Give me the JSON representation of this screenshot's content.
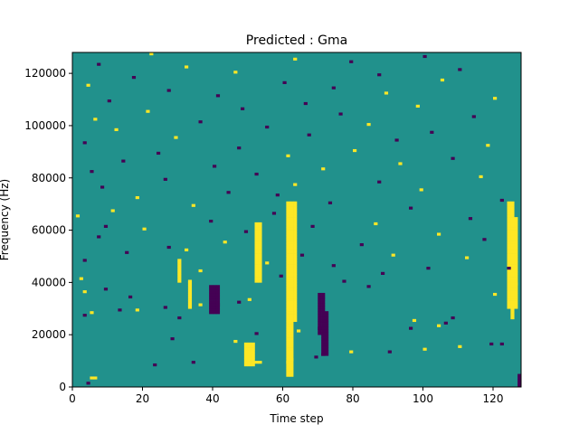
{
  "chart_data": {
    "type": "heatmap",
    "title": "Predicted : Gma",
    "xlabel": "Time step",
    "ylabel": "Frequency (Hz)",
    "xlim": [
      0,
      128
    ],
    "ylim": [
      0,
      128000
    ],
    "xticks": [
      0,
      20,
      40,
      60,
      80,
      100,
      120
    ],
    "yticks": [
      0,
      20000,
      40000,
      60000,
      80000,
      100000,
      120000
    ],
    "grid": false,
    "colormap": "viridis",
    "value_levels": {
      "low": -1,
      "mid": 0,
      "high": 1
    },
    "colors": {
      "low": "#440154",
      "mid": "#21918c",
      "high": "#fde725"
    },
    "rows": 128,
    "cols": 128,
    "cells": [
      [
        4,
        1,
        "lo"
      ],
      [
        5,
        3,
        "hi"
      ],
      [
        6,
        3,
        "hi"
      ],
      [
        23,
        8,
        "lo"
      ],
      [
        34,
        9,
        "lo"
      ],
      [
        52,
        9,
        "hi"
      ],
      [
        53,
        9,
        "hi"
      ],
      [
        61,
        9,
        "hi"
      ],
      [
        62,
        10,
        "hi"
      ],
      [
        69,
        11,
        "lo"
      ],
      [
        71,
        12,
        "lo"
      ],
      [
        79,
        13,
        "hi"
      ],
      [
        90,
        13,
        "lo"
      ],
      [
        100,
        14,
        "hi"
      ],
      [
        110,
        15,
        "hi"
      ],
      [
        119,
        16,
        "lo"
      ],
      [
        122,
        16,
        "lo"
      ],
      [
        46,
        17,
        "hi"
      ],
      [
        28,
        18,
        "lo"
      ],
      [
        52,
        20,
        "lo"
      ],
      [
        64,
        21,
        "hi"
      ],
      [
        70,
        22,
        "lo"
      ],
      [
        96,
        22,
        "lo"
      ],
      [
        104,
        23,
        "hi"
      ],
      [
        106,
        24,
        "lo"
      ],
      [
        97,
        25,
        "hi"
      ],
      [
        30,
        26,
        "lo"
      ],
      [
        108,
        26,
        "lo"
      ],
      [
        3,
        27,
        "lo"
      ],
      [
        5,
        28,
        "hi"
      ],
      [
        13,
        29,
        "lo"
      ],
      [
        18,
        29,
        "hi"
      ],
      [
        26,
        30,
        "lo"
      ],
      [
        36,
        31,
        "hi"
      ],
      [
        41,
        31,
        "lo"
      ],
      [
        47,
        32,
        "lo"
      ],
      [
        50,
        33,
        "hi"
      ],
      [
        16,
        34,
        "lo"
      ],
      [
        120,
        35,
        "hi"
      ],
      [
        3,
        36,
        "hi"
      ],
      [
        9,
        37,
        "lo"
      ],
      [
        84,
        38,
        "lo"
      ],
      [
        126,
        39,
        "hi"
      ],
      [
        77,
        40,
        "lo"
      ],
      [
        2,
        41,
        "hi"
      ],
      [
        59,
        42,
        "lo"
      ],
      [
        88,
        43,
        "lo"
      ],
      [
        36,
        44,
        "hi"
      ],
      [
        101,
        45,
        "lo"
      ],
      [
        124,
        45,
        "lo"
      ],
      [
        74,
        46,
        "lo"
      ],
      [
        55,
        47,
        "hi"
      ],
      [
        3,
        48,
        "lo"
      ],
      [
        112,
        49,
        "hi"
      ],
      [
        65,
        50,
        "lo"
      ],
      [
        91,
        50,
        "hi"
      ],
      [
        15,
        51,
        "lo"
      ],
      [
        32,
        52,
        "hi"
      ],
      [
        27,
        53,
        "lo"
      ],
      [
        82,
        54,
        "lo"
      ],
      [
        43,
        55,
        "hi"
      ],
      [
        117,
        56,
        "lo"
      ],
      [
        7,
        57,
        "lo"
      ],
      [
        104,
        58,
        "hi"
      ],
      [
        49,
        59,
        "lo"
      ],
      [
        20,
        60,
        "hi"
      ],
      [
        9,
        61,
        "lo"
      ],
      [
        68,
        61,
        "lo"
      ],
      [
        86,
        62,
        "hi"
      ],
      [
        39,
        63,
        "lo"
      ],
      [
        113,
        64,
        "lo"
      ],
      [
        1,
        65,
        "hi"
      ],
      [
        57,
        66,
        "lo"
      ],
      [
        11,
        67,
        "hi"
      ],
      [
        96,
        68,
        "lo"
      ],
      [
        34,
        69,
        "hi"
      ],
      [
        73,
        70,
        "lo"
      ],
      [
        122,
        71,
        "lo"
      ],
      [
        18,
        72,
        "hi"
      ],
      [
        58,
        73,
        "lo"
      ],
      [
        44,
        74,
        "lo"
      ],
      [
        99,
        75,
        "hi"
      ],
      [
        8,
        76,
        "lo"
      ],
      [
        63,
        77,
        "hi"
      ],
      [
        87,
        78,
        "lo"
      ],
      [
        26,
        79,
        "lo"
      ],
      [
        116,
        80,
        "hi"
      ],
      [
        52,
        81,
        "lo"
      ],
      [
        5,
        82,
        "lo"
      ],
      [
        71,
        83,
        "hi"
      ],
      [
        40,
        84,
        "lo"
      ],
      [
        93,
        85,
        "hi"
      ],
      [
        14,
        86,
        "lo"
      ],
      [
        108,
        87,
        "lo"
      ],
      [
        61,
        88,
        "hi"
      ],
      [
        24,
        89,
        "lo"
      ],
      [
        80,
        90,
        "hi"
      ],
      [
        47,
        91,
        "lo"
      ],
      [
        118,
        92,
        "hi"
      ],
      [
        3,
        93,
        "lo"
      ],
      [
        92,
        94,
        "lo"
      ],
      [
        29,
        95,
        "hi"
      ],
      [
        67,
        96,
        "lo"
      ],
      [
        102,
        97,
        "lo"
      ],
      [
        12,
        98,
        "hi"
      ],
      [
        55,
        99,
        "lo"
      ],
      [
        84,
        100,
        "hi"
      ],
      [
        36,
        101,
        "lo"
      ],
      [
        6,
        102,
        "hi"
      ],
      [
        114,
        103,
        "lo"
      ],
      [
        76,
        104,
        "lo"
      ],
      [
        21,
        105,
        "hi"
      ],
      [
        48,
        106,
        "lo"
      ],
      [
        98,
        107,
        "hi"
      ],
      [
        66,
        108,
        "lo"
      ],
      [
        10,
        109,
        "lo"
      ],
      [
        120,
        110,
        "hi"
      ],
      [
        41,
        111,
        "lo"
      ],
      [
        89,
        112,
        "hi"
      ],
      [
        27,
        113,
        "lo"
      ],
      [
        74,
        114,
        "lo"
      ],
      [
        4,
        115,
        "hi"
      ],
      [
        60,
        116,
        "lo"
      ],
      [
        105,
        117,
        "hi"
      ],
      [
        17,
        118,
        "lo"
      ],
      [
        87,
        119,
        "lo"
      ],
      [
        46,
        120,
        "hi"
      ],
      [
        110,
        121,
        "lo"
      ],
      [
        32,
        122,
        "hi"
      ],
      [
        7,
        123,
        "lo"
      ],
      [
        79,
        124,
        "lo"
      ],
      [
        63,
        125,
        "hi"
      ],
      [
        100,
        126,
        "lo"
      ],
      [
        22,
        127,
        "hi"
      ]
    ],
    "vertical_bands": [
      {
        "col": 61,
        "from": 4,
        "to": 70,
        "level": "hi"
      },
      {
        "col": 62,
        "from": 4,
        "to": 70,
        "level": "hi"
      },
      {
        "col": 63,
        "from": 25,
        "to": 70,
        "level": "hi"
      },
      {
        "col": 70,
        "from": 20,
        "to": 35,
        "level": "lo"
      },
      {
        "col": 71,
        "from": 12,
        "to": 35,
        "level": "lo"
      },
      {
        "col": 72,
        "from": 12,
        "to": 28,
        "level": "lo"
      },
      {
        "col": 49,
        "from": 8,
        "to": 16,
        "level": "hi"
      },
      {
        "col": 50,
        "from": 8,
        "to": 16,
        "level": "hi"
      },
      {
        "col": 51,
        "from": 8,
        "to": 16,
        "level": "hi"
      },
      {
        "col": 52,
        "from": 40,
        "to": 62,
        "level": "hi"
      },
      {
        "col": 53,
        "from": 40,
        "to": 62,
        "level": "hi"
      },
      {
        "col": 124,
        "from": 30,
        "to": 70,
        "level": "hi"
      },
      {
        "col": 125,
        "from": 26,
        "to": 70,
        "level": "hi"
      },
      {
        "col": 126,
        "from": 30,
        "to": 64,
        "level": "hi"
      },
      {
        "col": 127,
        "from": 0,
        "to": 4,
        "level": "lo"
      },
      {
        "col": 30,
        "from": 40,
        "to": 48,
        "level": "hi"
      },
      {
        "col": 33,
        "from": 30,
        "to": 40,
        "level": "hi"
      },
      {
        "col": 39,
        "from": 28,
        "to": 38,
        "level": "lo"
      },
      {
        "col": 40,
        "from": 28,
        "to": 38,
        "level": "lo"
      },
      {
        "col": 41,
        "from": 28,
        "to": 38,
        "level": "lo"
      }
    ]
  }
}
